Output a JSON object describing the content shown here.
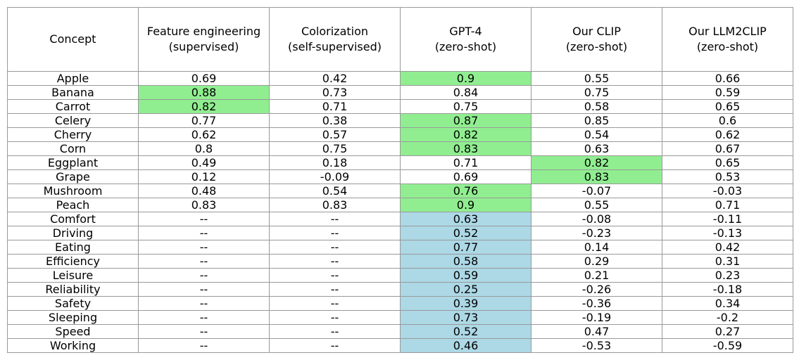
{
  "chart_data": {
    "type": "table",
    "columns": [
      {
        "title": "Concept",
        "subtitle": ""
      },
      {
        "title": "Feature engineering",
        "subtitle": "(supervised)"
      },
      {
        "title": "Colorization",
        "subtitle": "(self-supervised)"
      },
      {
        "title": "GPT-4",
        "subtitle": "(zero-shot)"
      },
      {
        "title": "Our CLIP",
        "subtitle": "(zero-shot)"
      },
      {
        "title": "Our LLM2CLIP",
        "subtitle": "(zero-shot)"
      }
    ],
    "rows": [
      {
        "concept": "Apple",
        "values": [
          "0.69",
          "0.42",
          "0.9",
          "0.55",
          "0.66"
        ],
        "highlight": [
          "",
          "",
          "green",
          "",
          ""
        ]
      },
      {
        "concept": "Banana",
        "values": [
          "0.88",
          "0.73",
          "0.84",
          "0.75",
          "0.59"
        ],
        "highlight": [
          "green",
          "",
          "",
          "",
          ""
        ]
      },
      {
        "concept": "Carrot",
        "values": [
          "0.82",
          "0.71",
          "0.75",
          "0.58",
          "0.65"
        ],
        "highlight": [
          "green",
          "",
          "",
          "",
          ""
        ]
      },
      {
        "concept": "Celery",
        "values": [
          "0.77",
          "0.38",
          "0.87",
          "0.85",
          "0.6"
        ],
        "highlight": [
          "",
          "",
          "green",
          "",
          ""
        ]
      },
      {
        "concept": "Cherry",
        "values": [
          "0.62",
          "0.57",
          "0.82",
          "0.54",
          "0.62"
        ],
        "highlight": [
          "",
          "",
          "green",
          "",
          ""
        ]
      },
      {
        "concept": "Corn",
        "values": [
          "0.8",
          "0.75",
          "0.83",
          "0.63",
          "0.67"
        ],
        "highlight": [
          "",
          "",
          "green",
          "",
          ""
        ]
      },
      {
        "concept": "Eggplant",
        "values": [
          "0.49",
          "0.18",
          "0.71",
          "0.82",
          "0.65"
        ],
        "highlight": [
          "",
          "",
          "",
          "green",
          ""
        ]
      },
      {
        "concept": "Grape",
        "values": [
          "0.12",
          "-0.09",
          "0.69",
          "0.83",
          "0.53"
        ],
        "highlight": [
          "",
          "",
          "",
          "green",
          ""
        ]
      },
      {
        "concept": "Mushroom",
        "values": [
          "0.48",
          "0.54",
          "0.76",
          "-0.07",
          "-0.03"
        ],
        "highlight": [
          "",
          "",
          "green",
          "",
          ""
        ]
      },
      {
        "concept": "Peach",
        "values": [
          "0.83",
          "0.83",
          "0.9",
          "0.55",
          "0.71"
        ],
        "highlight": [
          "",
          "",
          "green",
          "",
          ""
        ]
      },
      {
        "concept": "Comfort",
        "values": [
          "--",
          "--",
          "0.63",
          "-0.08",
          "-0.11"
        ],
        "highlight": [
          "",
          "",
          "blue",
          "",
          ""
        ]
      },
      {
        "concept": "Driving",
        "values": [
          "--",
          "--",
          "0.52",
          "-0.23",
          "-0.13"
        ],
        "highlight": [
          "",
          "",
          "blue",
          "",
          ""
        ]
      },
      {
        "concept": "Eating",
        "values": [
          "--",
          "--",
          "0.77",
          "0.14",
          "0.42"
        ],
        "highlight": [
          "",
          "",
          "blue",
          "",
          ""
        ]
      },
      {
        "concept": "Efficiency",
        "values": [
          "--",
          "--",
          "0.58",
          "0.29",
          "0.31"
        ],
        "highlight": [
          "",
          "",
          "blue",
          "",
          ""
        ]
      },
      {
        "concept": "Leisure",
        "values": [
          "--",
          "--",
          "0.59",
          "0.21",
          "0.23"
        ],
        "highlight": [
          "",
          "",
          "blue",
          "",
          ""
        ]
      },
      {
        "concept": "Reliability",
        "values": [
          "--",
          "--",
          "0.25",
          "-0.26",
          "-0.18"
        ],
        "highlight": [
          "",
          "",
          "blue",
          "",
          ""
        ]
      },
      {
        "concept": "Safety",
        "values": [
          "--",
          "--",
          "0.39",
          "-0.36",
          "0.34"
        ],
        "highlight": [
          "",
          "",
          "blue",
          "",
          ""
        ]
      },
      {
        "concept": "Sleeping",
        "values": [
          "--",
          "--",
          "0.73",
          "-0.19",
          "-0.2"
        ],
        "highlight": [
          "",
          "",
          "blue",
          "",
          ""
        ]
      },
      {
        "concept": "Speed",
        "values": [
          "--",
          "--",
          "0.52",
          "0.47",
          "0.27"
        ],
        "highlight": [
          "",
          "",
          "blue",
          "",
          ""
        ]
      },
      {
        "concept": "Working",
        "values": [
          "--",
          "--",
          "0.46",
          "-0.53",
          "-0.59"
        ],
        "highlight": [
          "",
          "",
          "blue",
          "",
          ""
        ]
      }
    ]
  },
  "colors": {
    "highlight_green": "#90ee90",
    "highlight_blue": "#add8e6",
    "border": "#999999"
  }
}
